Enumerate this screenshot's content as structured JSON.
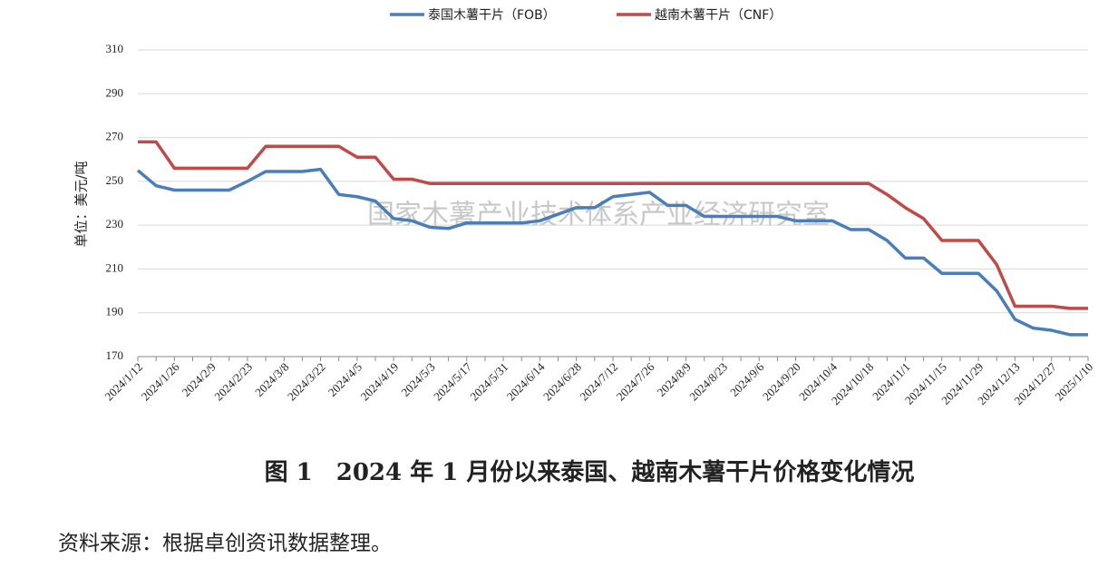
{
  "chart_data": {
    "type": "line",
    "watermark": "国家木薯产业技术体系产业经济研究室",
    "caption": "图 1　2024 年 1 月份以来泰国、越南木薯干片价格变化情况",
    "source": "资料来源：根据卓创资讯数据整理。",
    "y_label": "单位：美元/吨",
    "categories": [
      "2024/1/12",
      null,
      "2024/1/26",
      null,
      "2024/2/9",
      null,
      "2024/2/23",
      null,
      "2024/3/8",
      null,
      "2024/3/22",
      null,
      "2024/4/5",
      null,
      "2024/4/19",
      null,
      "2024/5/3",
      null,
      "2024/5/17",
      null,
      "2024/5/31",
      null,
      "2024/6/14",
      null,
      "2024/6/28",
      null,
      "2024/7/12",
      null,
      "2024/7/26",
      null,
      "2024/8/9",
      null,
      "2024/8/23",
      null,
      "2024/9/6",
      null,
      "2024/9/20",
      null,
      "2024/10/4",
      null,
      "2024/10/18",
      null,
      "2024/11/1",
      null,
      "2024/11/15",
      null,
      "2024/11/29",
      null,
      "2024/12/13",
      null,
      "2024/12/27",
      null,
      "2025/1/10"
    ],
    "series": [
      {
        "name": "泰国木薯干片（FOB）",
        "color": "#4a7ebb",
        "values": [
          255,
          248,
          246,
          246,
          246,
          246,
          250,
          254.5,
          254.5,
          254.5,
          255.5,
          244,
          243,
          241,
          233,
          232,
          229,
          228.5,
          231,
          231,
          231,
          231,
          232,
          235,
          238,
          238,
          243,
          244,
          245,
          239,
          239,
          234,
          234,
          234,
          234,
          234,
          232,
          232,
          232,
          228,
          228,
          223,
          215,
          215,
          208,
          208,
          208,
          200,
          187,
          183,
          182,
          180,
          180
        ]
      },
      {
        "name": "越南木薯干片（CNF）",
        "color": "#be4b48",
        "values": [
          268,
          268,
          256,
          256,
          256,
          256,
          256,
          266,
          266,
          266,
          266,
          266,
          261,
          261,
          251,
          251,
          249,
          249,
          249,
          249,
          249,
          249,
          249,
          249,
          249,
          249,
          249,
          249,
          249,
          249,
          249,
          249,
          249,
          249,
          249,
          249,
          249,
          249,
          249,
          249,
          249,
          244,
          238,
          233,
          223,
          223,
          223,
          212,
          193,
          193,
          193,
          192,
          192
        ]
      }
    ],
    "ylim": [
      170,
      310
    ],
    "yticks": [
      170,
      190,
      210,
      230,
      250,
      270,
      290,
      310
    ],
    "grid": true
  }
}
